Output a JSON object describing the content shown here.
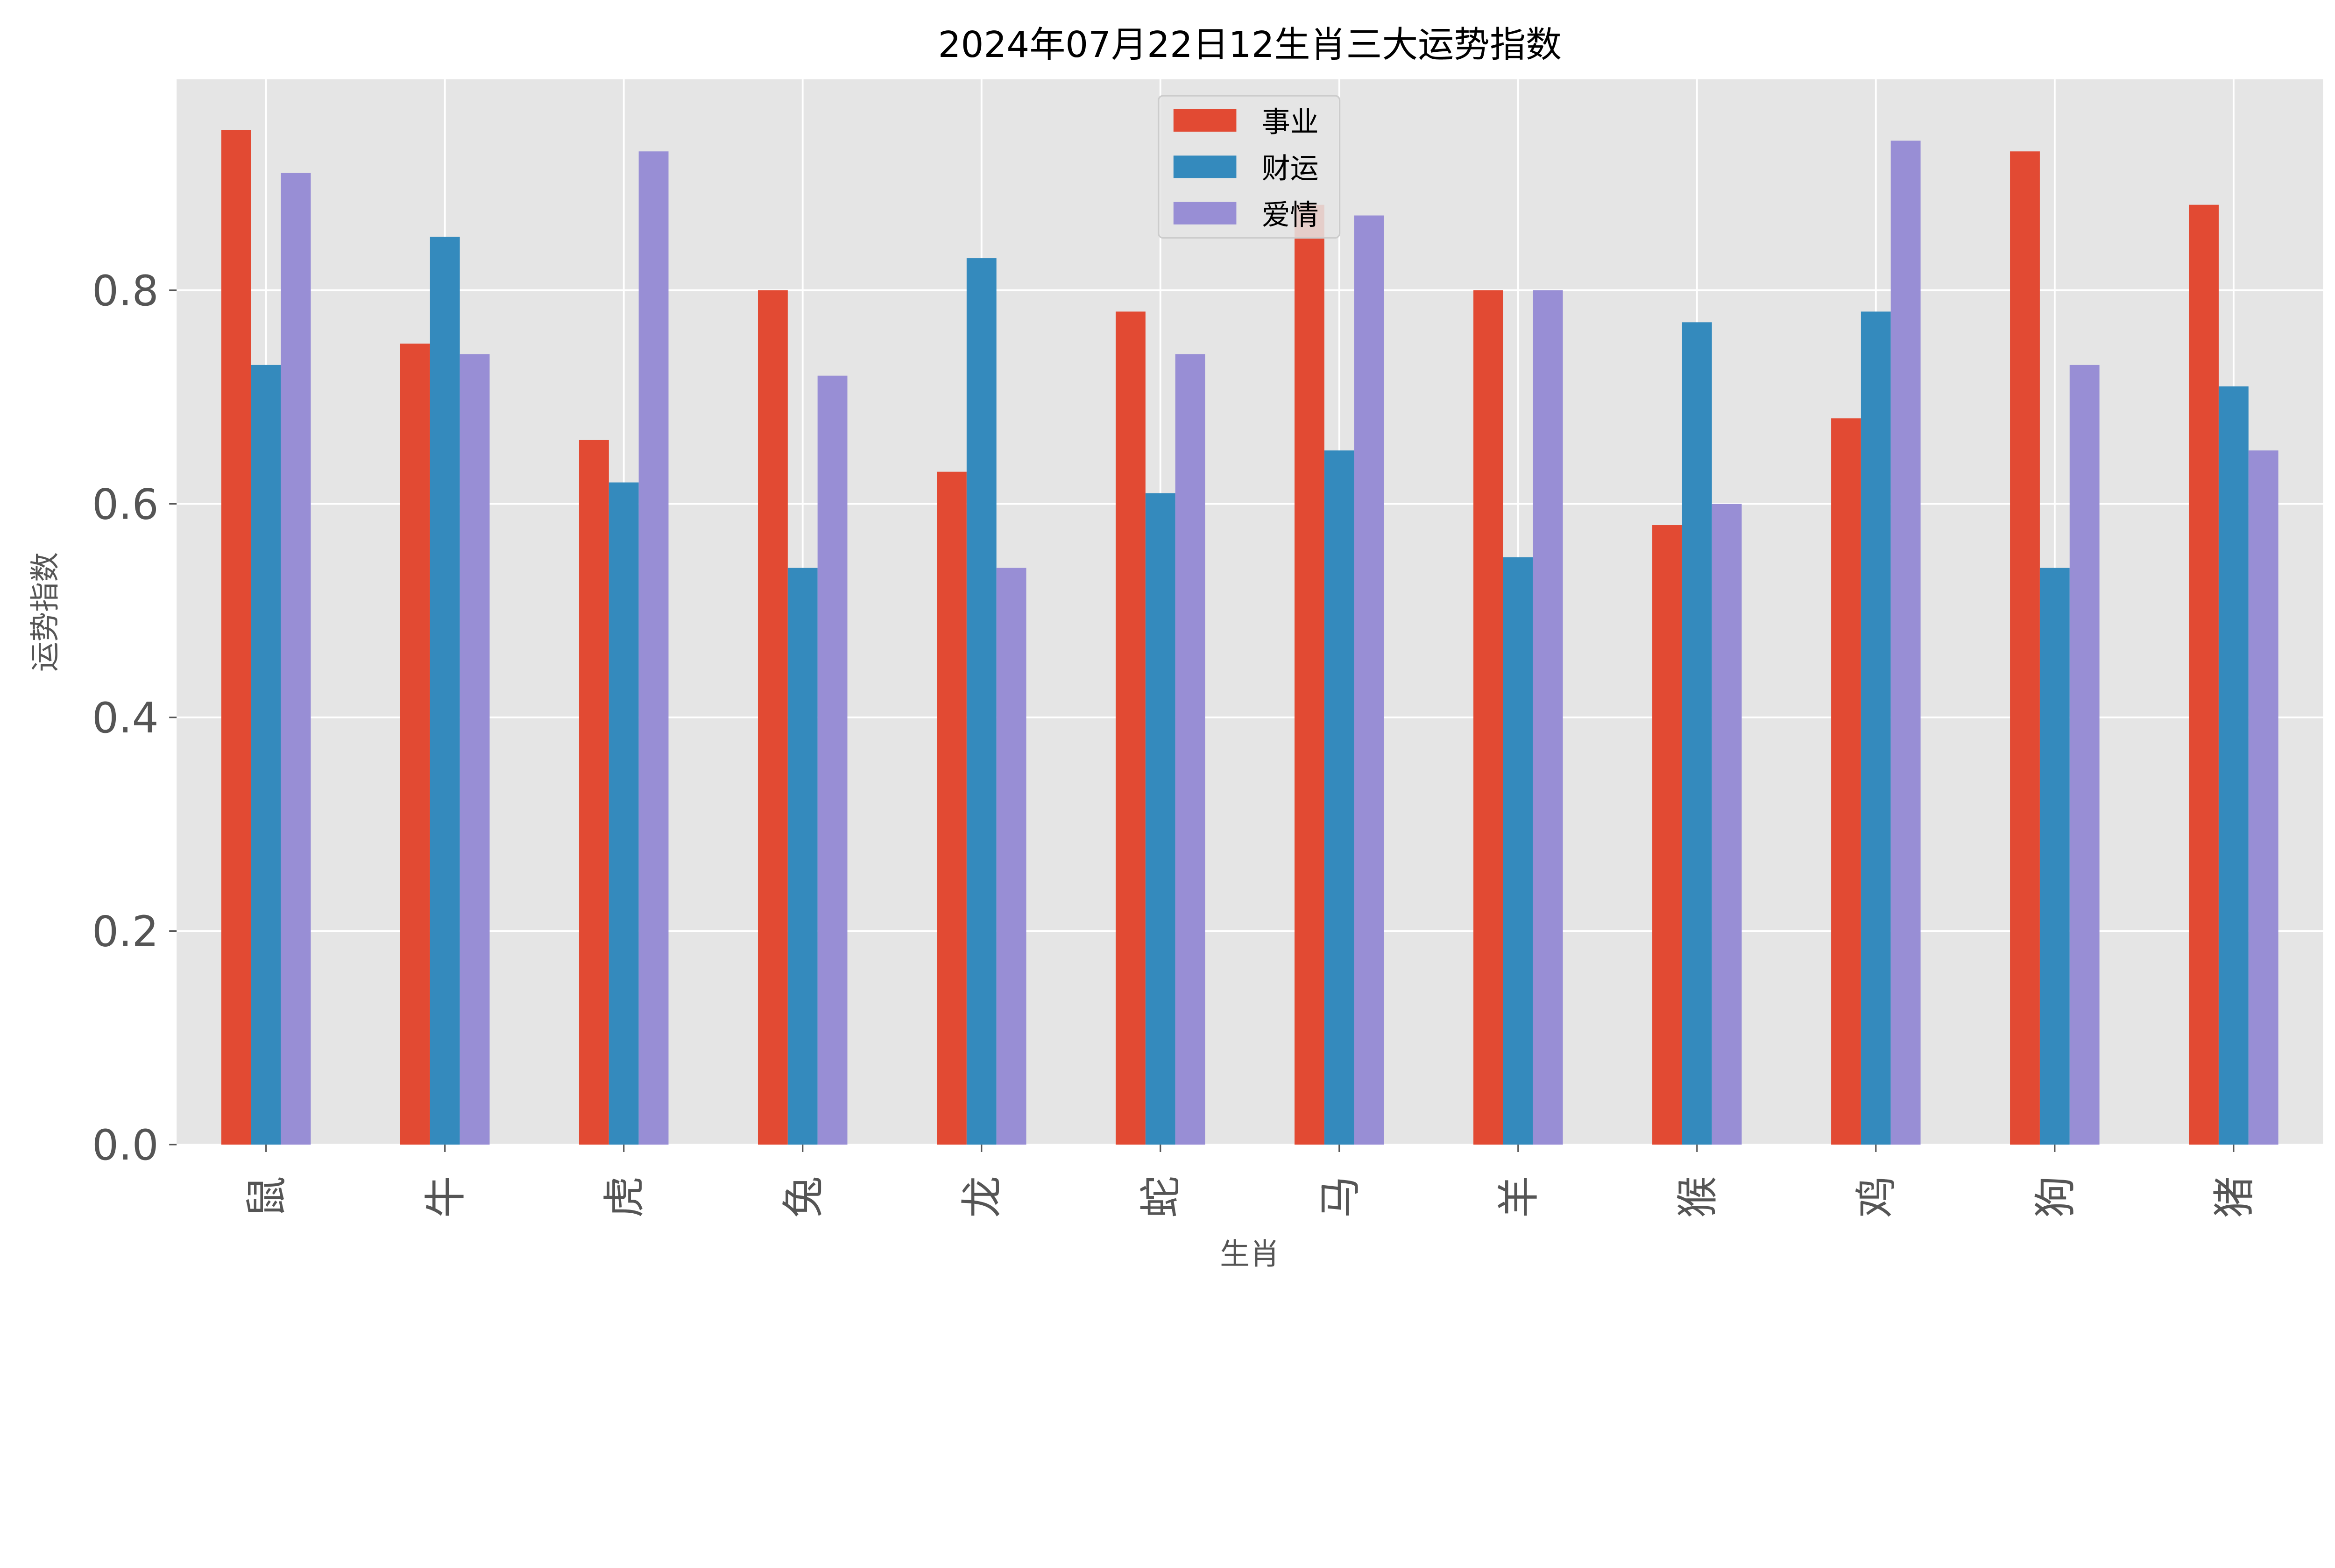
{
  "chart_data": {
    "type": "bar",
    "title": "2024年07月22日12生肖三大运势指数",
    "xlabel": "生肖",
    "ylabel": "运势指数",
    "categories": [
      "鼠",
      "牛",
      "虎",
      "兔",
      "龙",
      "蛇",
      "马",
      "羊",
      "猴",
      "鸡",
      "狗",
      "猪"
    ],
    "series": [
      {
        "name": "事业",
        "color": "#E24A33",
        "values": [
          0.95,
          0.75,
          0.66,
          0.8,
          0.63,
          0.78,
          0.88,
          0.8,
          0.58,
          0.68,
          0.93,
          0.88
        ]
      },
      {
        "name": "财运",
        "color": "#348ABD",
        "values": [
          0.73,
          0.85,
          0.62,
          0.54,
          0.83,
          0.61,
          0.65,
          0.55,
          0.77,
          0.78,
          0.54,
          0.71
        ]
      },
      {
        "name": "爱情",
        "color": "#988ED5",
        "values": [
          0.91,
          0.74,
          0.93,
          0.72,
          0.54,
          0.74,
          0.87,
          0.8,
          0.6,
          0.94,
          0.73,
          0.65
        ]
      }
    ],
    "yticks": [
      "0.0",
      "0.2",
      "0.4",
      "0.6",
      "0.8"
    ],
    "ylim": [
      0,
      0.9975
    ],
    "grid": true,
    "legend_position": "top-center",
    "style": {
      "background": "#E5E5E5",
      "grid_color": "#FFFFFF"
    }
  }
}
